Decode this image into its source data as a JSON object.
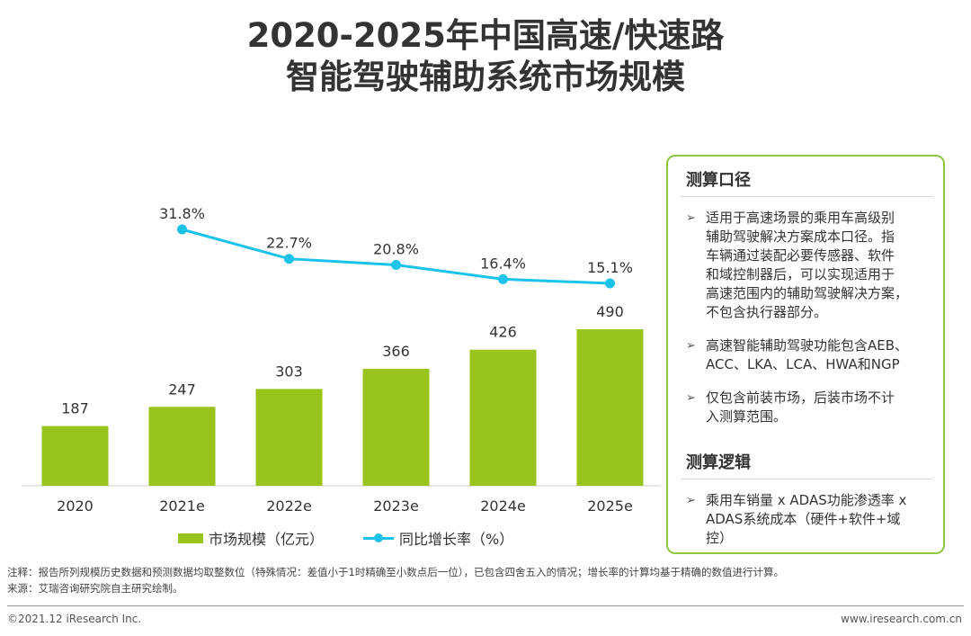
{
  "title_line1": "2020-2025年中国高速/快速路",
  "title_line2": "智能驾驶辅助系统市场规模",
  "chart_data": {
    "type": "bar",
    "categories": [
      "2020",
      "2021e",
      "2022e",
      "2023e",
      "2024e",
      "2025e"
    ],
    "series": [
      {
        "name": "市场规模（亿元）",
        "type": "bar",
        "values": [
          187,
          247,
          303,
          366,
          426,
          490
        ],
        "labels": [
          "187",
          "247",
          "303",
          "366",
          "426",
          "490"
        ],
        "color": "#99c31d"
      },
      {
        "name": "同比增长率（%）",
        "type": "line",
        "values": [
          null,
          31.8,
          22.7,
          20.8,
          16.4,
          15.1
        ],
        "labels": [
          "",
          "31.8%",
          "22.7%",
          "20.8%",
          "16.4%",
          "15.1%"
        ],
        "color": "#1bc2e9"
      }
    ],
    "legend_position": "bottom"
  },
  "panel": {
    "heading1": "测算口径",
    "items1": [
      {
        "lines": [
          "适用于高速场景的乘用车高级别",
          "辅助驾驶解决方案成本口径。指",
          "车辆通过装配必要传感器、软件",
          "和域控制器后，可以实现适用于",
          "高速范围内的辅助驾驶解决方案，",
          "不包含执行器部分。"
        ]
      },
      {
        "lines": [
          "高速智能辅助驾驶功能包含AEB、",
          "ACC、LKA、LCA、HWA和NGP"
        ]
      },
      {
        "lines": [
          "仅包含前装市场，后装市场不计",
          "入测算范围。"
        ]
      }
    ],
    "heading2": "测算逻辑",
    "items2": [
      {
        "lines": [
          "乘用车销量 x ADAS功能渗透率 x",
          "ADAS系统成本（硬件+软件+域",
          "控）"
        ]
      }
    ],
    "bullet": "➢"
  },
  "note": "注释：报告所列规模历史数据和预测数据均取整数位（特殊情况：差值小于1时精确至小数点后一位），已包含四舍五入的情况；增长率的计算均基于精确的数值进行计算。",
  "source": "来源：艾瑞咨询研究院自主研究绘制。",
  "footer_left": "©2021.12 iResearch Inc.",
  "footer_right": "www.iresearch.com.cn"
}
